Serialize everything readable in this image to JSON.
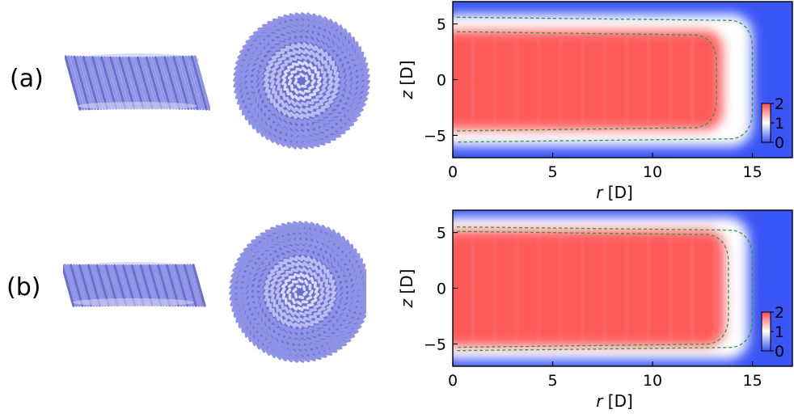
{
  "panels": [
    {
      "label": "(a)"
    },
    {
      "label": "(b)"
    }
  ],
  "colors": {
    "rod": "#8f93e6",
    "rod_dark": "#6a6fd0",
    "rod_light": "#d9dbf5",
    "high": "#ff4d4d",
    "mid": "#ffffff",
    "low": "#3a55f5",
    "contour": "#2f9a3c"
  },
  "chart_data": [
    {
      "type": "heatmap",
      "title": "",
      "xlabel_var": "r",
      "xlabel_unit": "[D]",
      "ylabel_var": "z",
      "ylabel_unit": "[D]",
      "xlim": [
        0,
        17
      ],
      "ylim": [
        -7,
        7
      ],
      "xticks": [
        "0",
        "5",
        "10",
        "15"
      ],
      "yticks": [
        "−5",
        "0",
        "5"
      ],
      "colorbar": {
        "range": [
          0,
          2
        ],
        "ticks": [
          "2",
          "1",
          "0"
        ]
      },
      "region": {
        "r_max": 13.5,
        "z_min": -4.5,
        "z_max": 4.4,
        "edge": 1.5
      },
      "contours": [
        {
          "level": "inner",
          "r_edge": 13.2,
          "z_top": 4.3,
          "z_bottom": -4.6
        },
        {
          "level": "outer",
          "r_edge": 15.0,
          "z_top": 5.6,
          "z_bottom": -5.6
        }
      ]
    },
    {
      "type": "heatmap",
      "title": "",
      "xlabel_var": "r",
      "xlabel_unit": "[D]",
      "ylabel_var": "z",
      "ylabel_unit": "[D]",
      "xlim": [
        0,
        17
      ],
      "ylim": [
        -7,
        7
      ],
      "xticks": [
        "0",
        "5",
        "10",
        "15"
      ],
      "yticks": [
        "−5",
        "0",
        "5"
      ],
      "colorbar": {
        "range": [
          0,
          2
        ],
        "ticks": [
          "2",
          "1",
          "0"
        ]
      },
      "region": {
        "r_max": 13.6,
        "z_min": -5.2,
        "z_max": 5.2,
        "edge": 1.2
      },
      "contours": [
        {
          "level": "inner",
          "r_edge": 13.8,
          "z_top": 5.1,
          "z_bottom": -5.3
        },
        {
          "level": "outer",
          "r_edge": 15.0,
          "z_top": 5.5,
          "z_bottom": -5.6
        }
      ]
    }
  ]
}
